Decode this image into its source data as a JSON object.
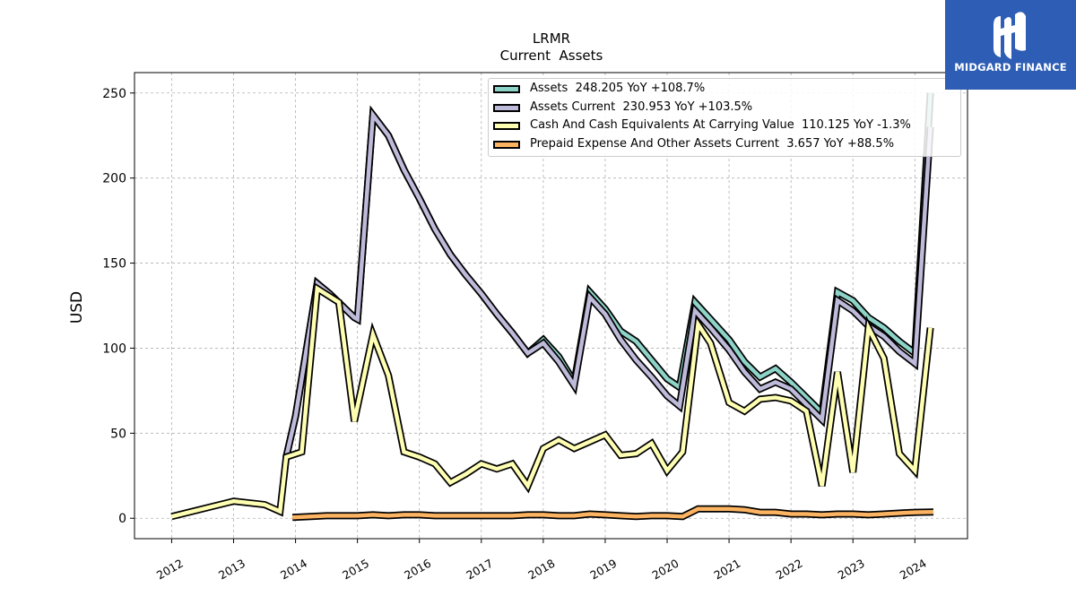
{
  "logo": {
    "text": "MIDGARD FINANCE",
    "icon": "midgard-m-logo-icon",
    "color": "#2d5db5"
  },
  "chart_data": {
    "type": "line",
    "title": "LRMR",
    "subtitle": "Current  Assets",
    "ylabel": "USD",
    "xlabel": "",
    "ylim": [
      -12,
      262
    ],
    "xlim": [
      2011.4,
      2024.85
    ],
    "yticks": [
      0,
      50,
      100,
      150,
      200,
      250
    ],
    "xticks": [
      "2012",
      "2013",
      "2014",
      "2015",
      "2016",
      "2017",
      "2018",
      "2019",
      "2020",
      "2021",
      "2022",
      "2023",
      "2024"
    ],
    "grid": true,
    "legend_position": "top-right",
    "series": [
      {
        "name": "Assets  248.205 YoY +108.7%",
        "color": "#8dd3c7",
        "x": [
          2013.85,
          2014.0,
          2014.35,
          2014.55,
          2014.75,
          2014.95,
          2015.0,
          2015.25,
          2015.5,
          2015.75,
          2016.0,
          2016.25,
          2016.5,
          2016.75,
          2017.0,
          2017.25,
          2017.5,
          2017.75,
          2018.0,
          2018.25,
          2018.5,
          2018.75,
          2019.0,
          2019.25,
          2019.5,
          2019.75,
          2020.0,
          2020.2,
          2020.45,
          2020.7,
          2021.0,
          2021.25,
          2021.5,
          2021.75,
          2022.0,
          2022.25,
          2022.5,
          2022.75,
          2023.0,
          2023.25,
          2023.5,
          2023.75,
          2024.0,
          2024.25
        ],
        "y": [
          36,
          60,
          138,
          132,
          125,
          118,
          117,
          237,
          225,
          205,
          188,
          170,
          155,
          143,
          132,
          120,
          109,
          97,
          105,
          95,
          80,
          133,
          123,
          110,
          104,
          93,
          82,
          77,
          127,
          117,
          105,
          92,
          83,
          88,
          80,
          71,
          62,
          133,
          128,
          118,
          112,
          104,
          97,
          250
        ]
      },
      {
        "name": "Assets Current  230.953 YoY +103.5%",
        "color": "#bebada",
        "x": [
          2013.85,
          2014.0,
          2014.35,
          2014.55,
          2014.75,
          2014.95,
          2015.0,
          2015.25,
          2015.5,
          2015.75,
          2016.0,
          2016.25,
          2016.5,
          2016.75,
          2017.0,
          2017.25,
          2017.5,
          2017.75,
          2018.0,
          2018.25,
          2018.5,
          2018.75,
          2019.0,
          2019.25,
          2019.5,
          2019.75,
          2020.0,
          2020.2,
          2020.45,
          2020.7,
          2021.0,
          2021.25,
          2021.5,
          2021.75,
          2022.0,
          2022.25,
          2022.5,
          2022.75,
          2023.0,
          2023.25,
          2023.5,
          2023.75,
          2024.0,
          2024.25
        ],
        "y": [
          36,
          60,
          138,
          132,
          125,
          118,
          117,
          237,
          225,
          205,
          188,
          170,
          155,
          143,
          132,
          120,
          109,
          97,
          103,
          92,
          78,
          130,
          120,
          105,
          93,
          83,
          72,
          66,
          122,
          112,
          99,
          86,
          76,
          80,
          76,
          67,
          58,
          128,
          122,
          113,
          107,
          98,
          91,
          230
        ]
      },
      {
        "name": "Cash And Cash Equivalents At Carrying Value  110.125 YoY -1.3%",
        "color": "#ffffb3",
        "x": [
          2012.0,
          2013.0,
          2013.5,
          2013.75,
          2013.85,
          2014.1,
          2014.35,
          2014.7,
          2014.95,
          2015.25,
          2015.5,
          2015.75,
          2016.0,
          2016.25,
          2016.5,
          2016.75,
          2017.0,
          2017.25,
          2017.5,
          2017.75,
          2018.0,
          2018.25,
          2018.5,
          2018.75,
          2019.0,
          2019.25,
          2019.5,
          2019.75,
          2020.0,
          2020.25,
          2020.5,
          2020.7,
          2021.0,
          2021.25,
          2021.5,
          2021.75,
          2022.0,
          2022.25,
          2022.5,
          2022.75,
          2023.0,
          2023.25,
          2023.5,
          2023.75,
          2024.0,
          2024.25
        ],
        "y": [
          1,
          10,
          8,
          4,
          36,
          39,
          135,
          127,
          57,
          108,
          84,
          39,
          36,
          32,
          21,
          26,
          32,
          29,
          32,
          19,
          41,
          46,
          41,
          45,
          49,
          37,
          38,
          44,
          28,
          39,
          114,
          103,
          68,
          63,
          70,
          71,
          69,
          63,
          19,
          86,
          27,
          112,
          94,
          38,
          28,
          112
        ]
      },
      {
        "name": "Prepaid Expense And Other Assets Current  3.657 YoY +88.5%",
        "color": "#fdb462",
        "x": [
          2013.95,
          2014.25,
          2014.5,
          2014.75,
          2015.0,
          2015.25,
          2015.5,
          2015.75,
          2016.0,
          2016.25,
          2016.5,
          2016.75,
          2017.0,
          2017.25,
          2017.5,
          2017.75,
          2018.0,
          2018.25,
          2018.5,
          2018.75,
          2019.0,
          2019.25,
          2019.5,
          2019.75,
          2020.0,
          2020.25,
          2020.5,
          2020.75,
          2021.0,
          2021.25,
          2021.5,
          2021.75,
          2022.0,
          2022.25,
          2022.5,
          2022.75,
          2023.0,
          2023.25,
          2023.5,
          2023.75,
          2024.0,
          2024.3
        ],
        "y": [
          0.5,
          1,
          1.5,
          1.5,
          1.5,
          2,
          1.5,
          2,
          2,
          1.5,
          1.5,
          1.5,
          1.5,
          1.5,
          1.5,
          2,
          2,
          1.5,
          1.5,
          2.5,
          2,
          1.5,
          1,
          1.5,
          1.5,
          1,
          5.5,
          5.5,
          5.5,
          5,
          3.5,
          3.5,
          2.5,
          2.5,
          2,
          2.5,
          2.5,
          2,
          2.5,
          3,
          3.5,
          3.7
        ]
      }
    ]
  }
}
